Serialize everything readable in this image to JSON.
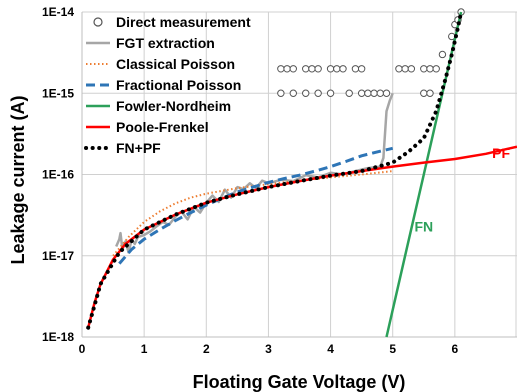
{
  "chart_data": {
    "type": "line",
    "title": "",
    "xlabel": "Floating Gate Voltage (V)",
    "ylabel": "Leakage current (A)",
    "xlim": [
      0,
      7
    ],
    "ylim": [
      1e-18,
      1e-14
    ],
    "yscale": "log",
    "grid": true,
    "legend_position": "top-left",
    "x_ticks": [
      0,
      1,
      2,
      3,
      4,
      5,
      6
    ],
    "x_tick_labels": [
      "0",
      "1",
      "2",
      "3",
      "4",
      "5",
      "6"
    ],
    "y_ticks": [
      1e-18,
      1e-17,
      1e-16,
      1e-15,
      1e-14
    ],
    "y_tick_labels": [
      "1E-18",
      "1E-17",
      "1E-16",
      "1E-15",
      "1E-14"
    ],
    "series": [
      {
        "name": "Direct measurement",
        "style": "markers",
        "color": "#555555",
        "points": [
          [
            3.2,
            2e-15
          ],
          [
            3.3,
            2e-15
          ],
          [
            3.4,
            2e-15
          ],
          [
            3.6,
            2e-15
          ],
          [
            3.7,
            2e-15
          ],
          [
            3.8,
            2e-15
          ],
          [
            4.0,
            2e-15
          ],
          [
            4.1,
            2e-15
          ],
          [
            4.2,
            2e-15
          ],
          [
            4.4,
            2e-15
          ],
          [
            4.5,
            2e-15
          ],
          [
            5.1,
            2e-15
          ],
          [
            5.2,
            2e-15
          ],
          [
            5.3,
            2e-15
          ],
          [
            5.5,
            2e-15
          ],
          [
            5.6,
            2e-15
          ],
          [
            5.7,
            2e-15
          ],
          [
            3.2,
            1e-15
          ],
          [
            3.4,
            1e-15
          ],
          [
            3.6,
            1e-15
          ],
          [
            3.8,
            1e-15
          ],
          [
            4.0,
            1e-15
          ],
          [
            4.3,
            1e-15
          ],
          [
            4.5,
            1e-15
          ],
          [
            4.6,
            1e-15
          ],
          [
            4.7,
            1e-15
          ],
          [
            4.8,
            1e-15
          ],
          [
            4.9,
            1e-15
          ],
          [
            5.5,
            1e-15
          ],
          [
            5.6,
            1e-15
          ],
          [
            5.8,
            3e-15
          ],
          [
            5.95,
            5e-15
          ],
          [
            6.0,
            7e-15
          ],
          [
            6.05,
            8e-15
          ],
          [
            6.1,
            1e-14
          ]
        ]
      },
      {
        "name": "FGT extraction",
        "style": "solid",
        "color": "#a6a6a6",
        "points": [
          [
            0.55,
            1.3e-17
          ],
          [
            0.6,
            1.6e-17
          ],
          [
            0.62,
            1.9e-17
          ],
          [
            0.65,
            1.2e-17
          ],
          [
            0.7,
            1.5e-17
          ],
          [
            0.75,
            1.1e-17
          ],
          [
            0.8,
            1.6e-17
          ],
          [
            0.85,
            1.4e-17
          ],
          [
            0.9,
            1.7e-17
          ],
          [
            1.0,
            1.8e-17
          ],
          [
            1.1,
            2e-17
          ],
          [
            1.2,
            2.3e-17
          ],
          [
            1.3,
            2.6e-17
          ],
          [
            1.4,
            2.4e-17
          ],
          [
            1.5,
            3e-17
          ],
          [
            1.6,
            3.5e-17
          ],
          [
            1.7,
            2.8e-17
          ],
          [
            1.8,
            4e-17
          ],
          [
            1.9,
            3.4e-17
          ],
          [
            2.0,
            4.5e-17
          ],
          [
            2.1,
            5.5e-17
          ],
          [
            2.2,
            4.6e-17
          ],
          [
            2.3,
            6.5e-17
          ],
          [
            2.4,
            5.2e-17
          ],
          [
            2.5,
            7e-17
          ],
          [
            2.6,
            6.6e-17
          ],
          [
            2.7,
            7.8e-17
          ],
          [
            2.8,
            6.8e-17
          ],
          [
            2.9,
            8.4e-17
          ],
          [
            3.0,
            7.8e-17
          ],
          [
            3.2,
            8.6e-17
          ],
          [
            3.4,
            8.3e-17
          ],
          [
            3.6,
            9.8e-17
          ],
          [
            3.8,
            9.2e-17
          ],
          [
            4.0,
            1.05e-16
          ],
          [
            4.2,
            1e-16
          ],
          [
            4.4,
            1.1e-16
          ],
          [
            4.6,
            1.2e-16
          ],
          [
            4.8,
            1.25e-16
          ],
          [
            4.85,
            1.6e-16
          ],
          [
            4.9,
            6e-16
          ],
          [
            4.95,
            8e-16
          ],
          [
            5.0,
            1e-15
          ]
        ]
      },
      {
        "name": "Classical Poisson",
        "style": "dotted",
        "color": "#ed7d31",
        "points": [
          [
            0.5,
            1e-17
          ],
          [
            0.75,
            1.7e-17
          ],
          [
            1.0,
            2.6e-17
          ],
          [
            1.25,
            3.5e-17
          ],
          [
            1.5,
            4.4e-17
          ],
          [
            1.75,
            5.2e-17
          ],
          [
            2.0,
            5.8e-17
          ],
          [
            2.5,
            6.8e-17
          ],
          [
            3.0,
            7.6e-17
          ],
          [
            3.5,
            8.4e-17
          ],
          [
            4.0,
            9.2e-17
          ],
          [
            4.5,
            1e-16
          ],
          [
            5.0,
            1.1e-16
          ]
        ]
      },
      {
        "name": "Fractional Poisson",
        "style": "dashed",
        "color": "#2e75b6",
        "points": [
          [
            0.6,
            8e-18
          ],
          [
            0.8,
            1.2e-17
          ],
          [
            1.0,
            1.6e-17
          ],
          [
            1.25,
            2.1e-17
          ],
          [
            1.5,
            2.7e-17
          ],
          [
            1.75,
            3.4e-17
          ],
          [
            2.0,
            4.2e-17
          ],
          [
            2.25,
            5.1e-17
          ],
          [
            2.5,
            6.1e-17
          ],
          [
            2.75,
            7e-17
          ],
          [
            3.0,
            8e-17
          ],
          [
            3.25,
            8.9e-17
          ],
          [
            3.5,
            9.8e-17
          ],
          [
            3.75,
            1.1e-16
          ],
          [
            4.0,
            1.25e-16
          ],
          [
            4.25,
            1.45e-16
          ],
          [
            4.5,
            1.7e-16
          ],
          [
            4.75,
            1.9e-16
          ],
          [
            5.0,
            2.1e-16
          ]
        ]
      },
      {
        "name": "Fowler-Nordheim",
        "style": "solid",
        "color": "#2ca05a",
        "points": [
          [
            4.9,
            1e-18
          ],
          [
            5.2,
            1e-17
          ],
          [
            5.5,
            1e-16
          ],
          [
            5.8,
            1e-15
          ],
          [
            6.1,
            1e-14
          ]
        ]
      },
      {
        "name": "Poole-Frenkel",
        "style": "solid",
        "color": "#ff0000",
        "points": [
          [
            0.1,
            1.3e-18
          ],
          [
            0.2,
            2.6e-18
          ],
          [
            0.3,
            4.5e-18
          ],
          [
            0.5,
            9e-18
          ],
          [
            0.7,
            1.4e-17
          ],
          [
            1.0,
            2.1e-17
          ],
          [
            1.5,
            3.2e-17
          ],
          [
            2.0,
            4.5e-17
          ],
          [
            2.5,
            5.7e-17
          ],
          [
            3.0,
            7e-17
          ],
          [
            3.5,
            8.3e-17
          ],
          [
            4.0,
            9.7e-17
          ],
          [
            4.5,
            1.1e-16
          ],
          [
            5.0,
            1.25e-16
          ],
          [
            5.5,
            1.4e-16
          ],
          [
            6.0,
            1.55e-16
          ],
          [
            6.5,
            1.8e-16
          ],
          [
            7.0,
            2.2e-16
          ]
        ]
      },
      {
        "name": "FN+PF",
        "style": "dotted",
        "color": "#000000",
        "points": [
          [
            0.1,
            1.3e-18
          ],
          [
            0.3,
            4.5e-18
          ],
          [
            0.6,
            1.1e-17
          ],
          [
            1.0,
            2.1e-17
          ],
          [
            1.5,
            3.2e-17
          ],
          [
            2.0,
            4.5e-17
          ],
          [
            2.5,
            5.7e-17
          ],
          [
            3.0,
            7e-17
          ],
          [
            3.5,
            8.3e-17
          ],
          [
            4.0,
            9.7e-17
          ],
          [
            4.5,
            1.1e-16
          ],
          [
            5.0,
            1.4e-16
          ],
          [
            5.25,
            1.9e-16
          ],
          [
            5.5,
            2.8e-16
          ],
          [
            5.7,
            6e-16
          ],
          [
            5.85,
            1.5e-15
          ],
          [
            5.95,
            3e-15
          ],
          [
            6.05,
            6.5e-15
          ],
          [
            6.1,
            1e-14
          ]
        ]
      }
    ],
    "annotations": [
      {
        "text": "PF",
        "x": 6.6,
        "y": 1.6e-16,
        "color": "#ff0000"
      },
      {
        "text": "FN",
        "x": 5.35,
        "y": 2e-17,
        "color": "#2ca05a"
      }
    ]
  }
}
